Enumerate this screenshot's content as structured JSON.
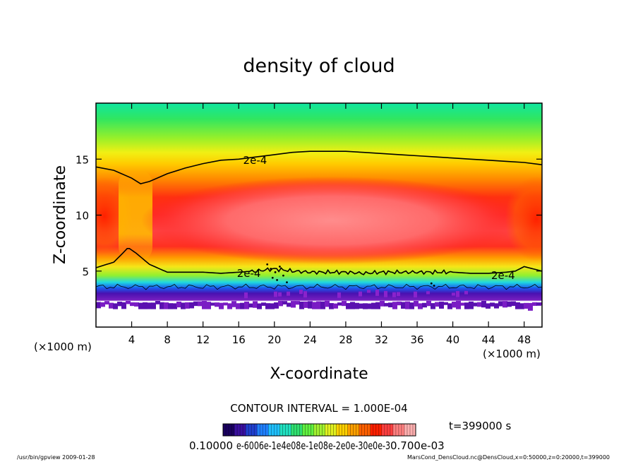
{
  "chart_data": {
    "type": "heatmap",
    "title": "density of cloud",
    "xlabel": "X-coordinate",
    "ylabel": "Z-coordinate",
    "x_unit_left": "(×1000 m)",
    "x_unit_right": "(×1000 m)",
    "xlim": [
      0,
      50
    ],
    "ylim": [
      0,
      20
    ],
    "x_ticks": [
      4,
      8,
      12,
      16,
      20,
      24,
      28,
      32,
      36,
      40,
      44,
      48
    ],
    "y_ticks": [
      5,
      10,
      15
    ],
    "contour_interval_text": "CONTOUR INTERVAL = 1.000E-04",
    "time_text": "t=399000 s",
    "contour_labels": [
      {
        "text": "2e-4",
        "x": 16.5,
        "y": 14.9
      },
      {
        "text": "2e-4",
        "x": 15.8,
        "y": 4.8
      },
      {
        "text": "2e-4",
        "x": 44.3,
        "y": 4.6
      }
    ],
    "contour_upper": {
      "x": [
        0,
        2,
        4,
        5,
        6,
        8,
        10,
        12,
        14,
        16,
        18,
        20,
        22,
        24,
        26,
        28,
        30,
        32,
        34,
        36,
        38,
        40,
        42,
        44,
        46,
        48,
        50
      ],
      "y": [
        14.3,
        14.0,
        13.3,
        12.8,
        13.0,
        13.7,
        14.2,
        14.6,
        14.9,
        15.0,
        15.2,
        15.4,
        15.6,
        15.7,
        15.7,
        15.7,
        15.6,
        15.5,
        15.4,
        15.3,
        15.2,
        15.1,
        15.0,
        14.9,
        14.8,
        14.7,
        14.5
      ]
    },
    "contour_lower": {
      "x": [
        0,
        2,
        3,
        3.6,
        4.5,
        6,
        8,
        10,
        12,
        14,
        16,
        18,
        20,
        22,
        24,
        26,
        28,
        30,
        32,
        34,
        36,
        38,
        40,
        42,
        44,
        46,
        47,
        48,
        49,
        50
      ],
      "y": [
        5.3,
        5.8,
        6.6,
        7.1,
        6.6,
        5.6,
        4.9,
        4.9,
        4.9,
        4.8,
        4.9,
        5.0,
        5.2,
        5.0,
        4.9,
        4.9,
        4.9,
        4.8,
        4.9,
        4.9,
        4.9,
        4.9,
        4.9,
        4.8,
        4.8,
        4.9,
        5.0,
        5.4,
        5.2,
        5.0
      ]
    },
    "colorbar": {
      "min_label": "0.10000",
      "max_label": "0.700e-03",
      "overlapping_labels": "e-6006e-1e4e08e-1e08e-2e0e-30e0e-3",
      "colors": [
        "#1a0060",
        "#3a10a0",
        "#2040d0",
        "#2080ff",
        "#20c0ff",
        "#20e0c0",
        "#30e070",
        "#60f040",
        "#a0f030",
        "#e0f020",
        "#ffd000",
        "#ffa000",
        "#ff6000",
        "#ff2000",
        "#ff4040",
        "#ff8080",
        "#ffb0b0"
      ]
    }
  },
  "footer": {
    "left": "/usr/bin/gpview   2009-01-28",
    "right": "MarsCond_DensCloud.nc@DensCloud,x=0:50000,z=0:20000,t=399000"
  }
}
